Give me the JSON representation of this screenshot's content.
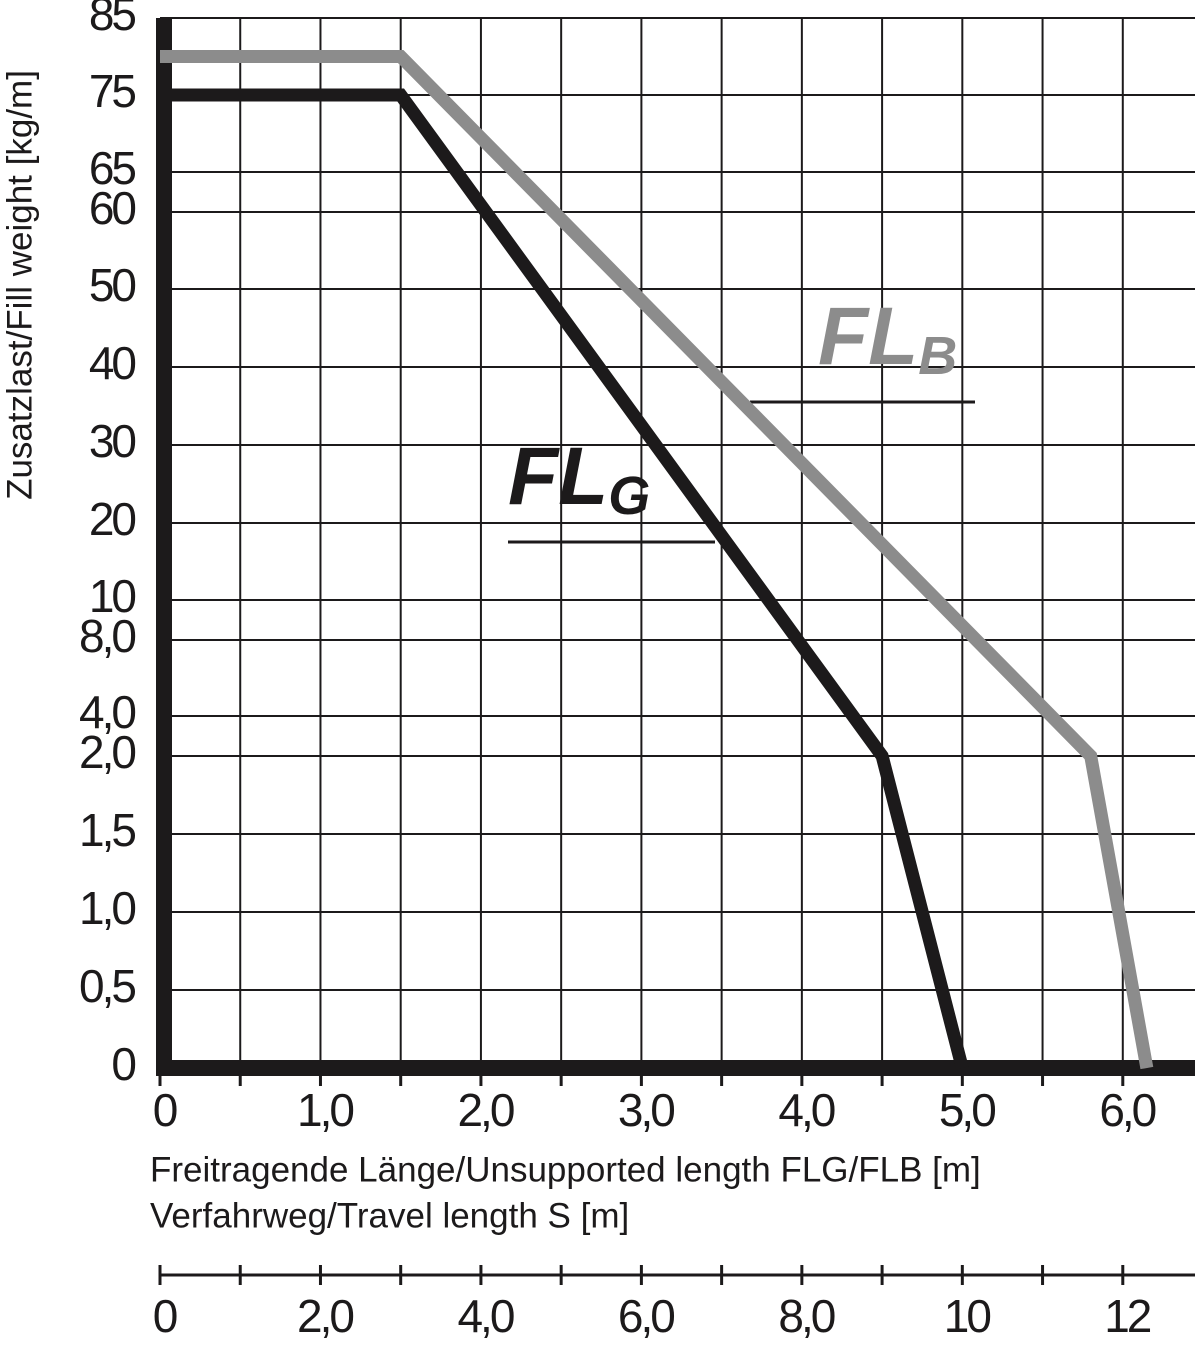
{
  "chart_data": {
    "type": "line",
    "ylabel": "Zusatzlast/Fill weight [kg/m]",
    "xlabel": "Freitragende Länge/Unsupported length FLG/FLB [m]",
    "x2label": "Verfahrweg/Travel length S [m]",
    "series": [
      {
        "color": "#1c1a1b",
        "x": [
          0,
          1.5,
          4.5,
          5.0
        ],
        "values": [
          75,
          75,
          2.0,
          0
        ]
      },
      {
        "color": "#8c8c8c",
        "x": [
          0,
          1.5,
          5.8,
          6.15
        ],
        "values": [
          80,
          80,
          2.0,
          0
        ]
      }
    ],
    "annotations": [
      {
        "text": "FL",
        "sub": "G",
        "color": "#1c1a1b"
      },
      {
        "text": "FL",
        "sub": "B",
        "color": "#8c8c8c"
      }
    ],
    "xlim": [
      0,
      6.45
    ],
    "xticks": [
      0,
      {
        "value": 1,
        "label": "1,0"
      },
      {
        "value": 2,
        "label": "2,0"
      },
      {
        "value": 3,
        "label": "3,0"
      },
      {
        "value": 4,
        "label": "4,0"
      },
      {
        "value": 5,
        "label": "5,0"
      },
      {
        "value": 6,
        "label": "6,0"
      }
    ],
    "x2lim": [
      0,
      12.9
    ],
    "x2ticks": [
      0,
      {
        "value": 2,
        "label": "2,0"
      },
      {
        "value": 4,
        "label": "4,0"
      },
      {
        "value": 6,
        "label": "6,0"
      },
      {
        "value": 8,
        "label": "8,0"
      },
      10,
      12
    ],
    "ylim": [
      0,
      85
    ],
    "yticks": [
      0,
      {
        "value": 0.5,
        "label": "0,5"
      },
      {
        "value": 1,
        "label": "1,0"
      },
      {
        "value": 1.5,
        "label": "1,5"
      },
      {
        "value": 2,
        "label": "2,0"
      },
      {
        "value": 4,
        "label": "4,0"
      },
      {
        "value": 8,
        "label": "8,0"
      },
      10,
      20,
      30,
      40,
      50,
      60,
      65,
      75,
      85
    ],
    "grid": true
  }
}
